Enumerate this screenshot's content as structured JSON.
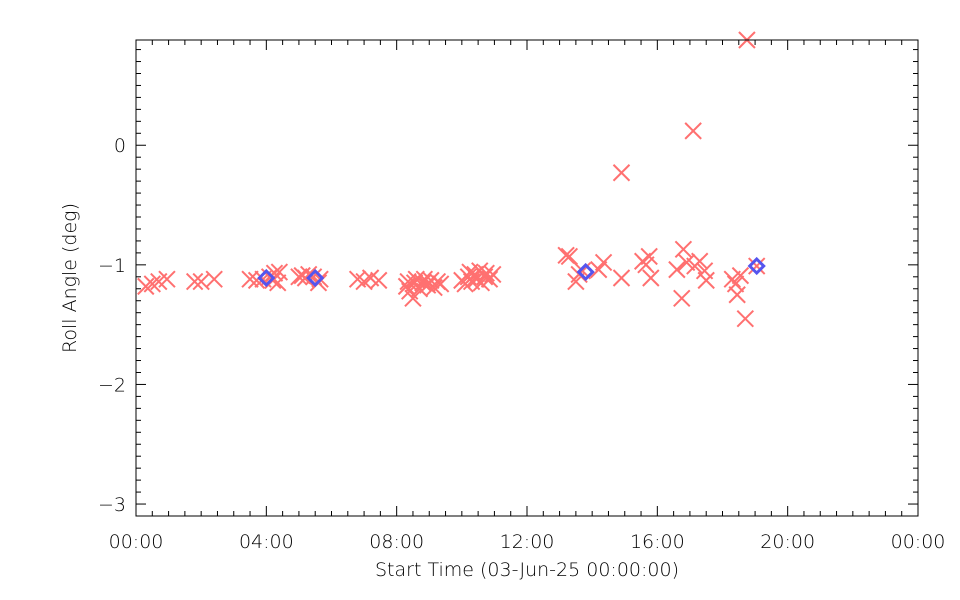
{
  "chart_data": {
    "type": "scatter",
    "title": "",
    "xlabel": "Start Time (03-Jun-25 00:00:00)",
    "ylabel": "Roll Angle (deg)",
    "x_units": "hours",
    "xlim": [
      0,
      24
    ],
    "ylim": [
      -3.1,
      0.88
    ],
    "x_ticks": [
      0,
      4,
      8,
      12,
      16,
      20,
      24
    ],
    "x_tick_labels": [
      "00:00",
      "04:00",
      "08:00",
      "12:00",
      "16:00",
      "20:00",
      "00:00"
    ],
    "y_ticks": [
      -3,
      -2,
      -1,
      0
    ],
    "y_tick_labels": [
      "−3",
      "−2",
      "−1",
      "0"
    ],
    "grid": false,
    "series": [
      {
        "marker": "x",
        "color": "#ff7070",
        "points": [
          [
            0.3,
            -1.18
          ],
          [
            0.5,
            -1.16
          ],
          [
            0.7,
            -1.14
          ],
          [
            0.95,
            -1.12
          ],
          [
            1.8,
            -1.14
          ],
          [
            2.0,
            -1.14
          ],
          [
            2.4,
            -1.12
          ],
          [
            3.5,
            -1.12
          ],
          [
            3.7,
            -1.13
          ],
          [
            3.9,
            -1.12
          ],
          [
            4.1,
            -1.1
          ],
          [
            4.2,
            -1.13
          ],
          [
            4.25,
            -1.07
          ],
          [
            4.35,
            -1.15
          ],
          [
            4.4,
            -1.06
          ],
          [
            5.0,
            -1.1
          ],
          [
            5.1,
            -1.09
          ],
          [
            5.2,
            -1.11
          ],
          [
            5.3,
            -1.08
          ],
          [
            5.45,
            -1.1
          ],
          [
            5.6,
            -1.15
          ],
          [
            5.65,
            -1.12
          ],
          [
            6.8,
            -1.12
          ],
          [
            7.0,
            -1.14
          ],
          [
            7.2,
            -1.11
          ],
          [
            7.45,
            -1.13
          ],
          [
            8.3,
            -1.18
          ],
          [
            8.35,
            -1.14
          ],
          [
            8.4,
            -1.22
          ],
          [
            8.5,
            -1.28
          ],
          [
            8.55,
            -1.15
          ],
          [
            8.6,
            -1.12
          ],
          [
            8.7,
            -1.2
          ],
          [
            8.8,
            -1.15
          ],
          [
            8.85,
            -1.12
          ],
          [
            8.95,
            -1.17
          ],
          [
            9.05,
            -1.13
          ],
          [
            9.15,
            -1.19
          ],
          [
            9.25,
            -1.14
          ],
          [
            9.35,
            -1.16
          ],
          [
            10.0,
            -1.13
          ],
          [
            10.1,
            -1.16
          ],
          [
            10.2,
            -1.1
          ],
          [
            10.25,
            -1.06
          ],
          [
            10.3,
            -1.14
          ],
          [
            10.4,
            -1.08
          ],
          [
            10.45,
            -1.12
          ],
          [
            10.55,
            -1.05
          ],
          [
            10.6,
            -1.15
          ],
          [
            10.7,
            -1.1
          ],
          [
            10.75,
            -1.07
          ],
          [
            10.85,
            -1.12
          ],
          [
            10.95,
            -1.08
          ],
          [
            13.2,
            -0.92
          ],
          [
            13.3,
            -0.93
          ],
          [
            13.5,
            -1.14
          ],
          [
            13.6,
            -1.08
          ],
          [
            13.7,
            -1.05
          ],
          [
            14.2,
            -1.04
          ],
          [
            14.35,
            -0.98
          ],
          [
            14.9,
            -1.11
          ],
          [
            14.9,
            -0.23
          ],
          [
            15.55,
            -0.97
          ],
          [
            15.65,
            -1.0
          ],
          [
            15.75,
            -0.93
          ],
          [
            15.8,
            -1.11
          ],
          [
            16.6,
            -1.04
          ],
          [
            16.75,
            -1.28
          ],
          [
            16.8,
            -0.87
          ],
          [
            16.9,
            -0.98
          ],
          [
            17.1,
            0.12
          ],
          [
            17.15,
            -1.01
          ],
          [
            17.3,
            -0.97
          ],
          [
            17.45,
            -1.05
          ],
          [
            17.5,
            -1.13
          ],
          [
            18.3,
            -1.12
          ],
          [
            18.4,
            -1.16
          ],
          [
            18.45,
            -1.25
          ],
          [
            18.55,
            -1.09
          ],
          [
            18.7,
            -1.45
          ],
          [
            18.75,
            0.88
          ],
          [
            19.05,
            -1.01
          ]
        ]
      },
      {
        "marker": "diamond",
        "color": "#5555ee",
        "points": [
          [
            4.0,
            -1.11
          ],
          [
            5.5,
            -1.11
          ],
          [
            13.8,
            -1.06
          ],
          [
            19.05,
            -1.01
          ]
        ]
      }
    ]
  }
}
